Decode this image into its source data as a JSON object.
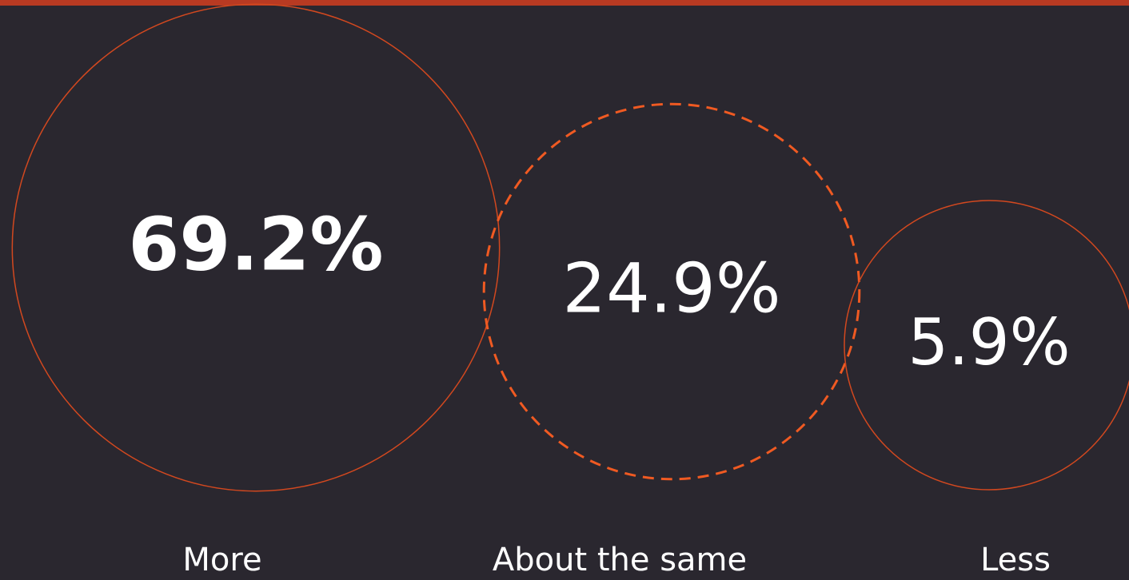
{
  "chart_data": {
    "type": "bubble",
    "categories": [
      "More",
      "About the same",
      "Less"
    ],
    "values": [
      69.2,
      24.9,
      5.9
    ],
    "value_labels": [
      "69.2%",
      "24.9%",
      "5.9%"
    ],
    "color": "#d2481f"
  }
}
